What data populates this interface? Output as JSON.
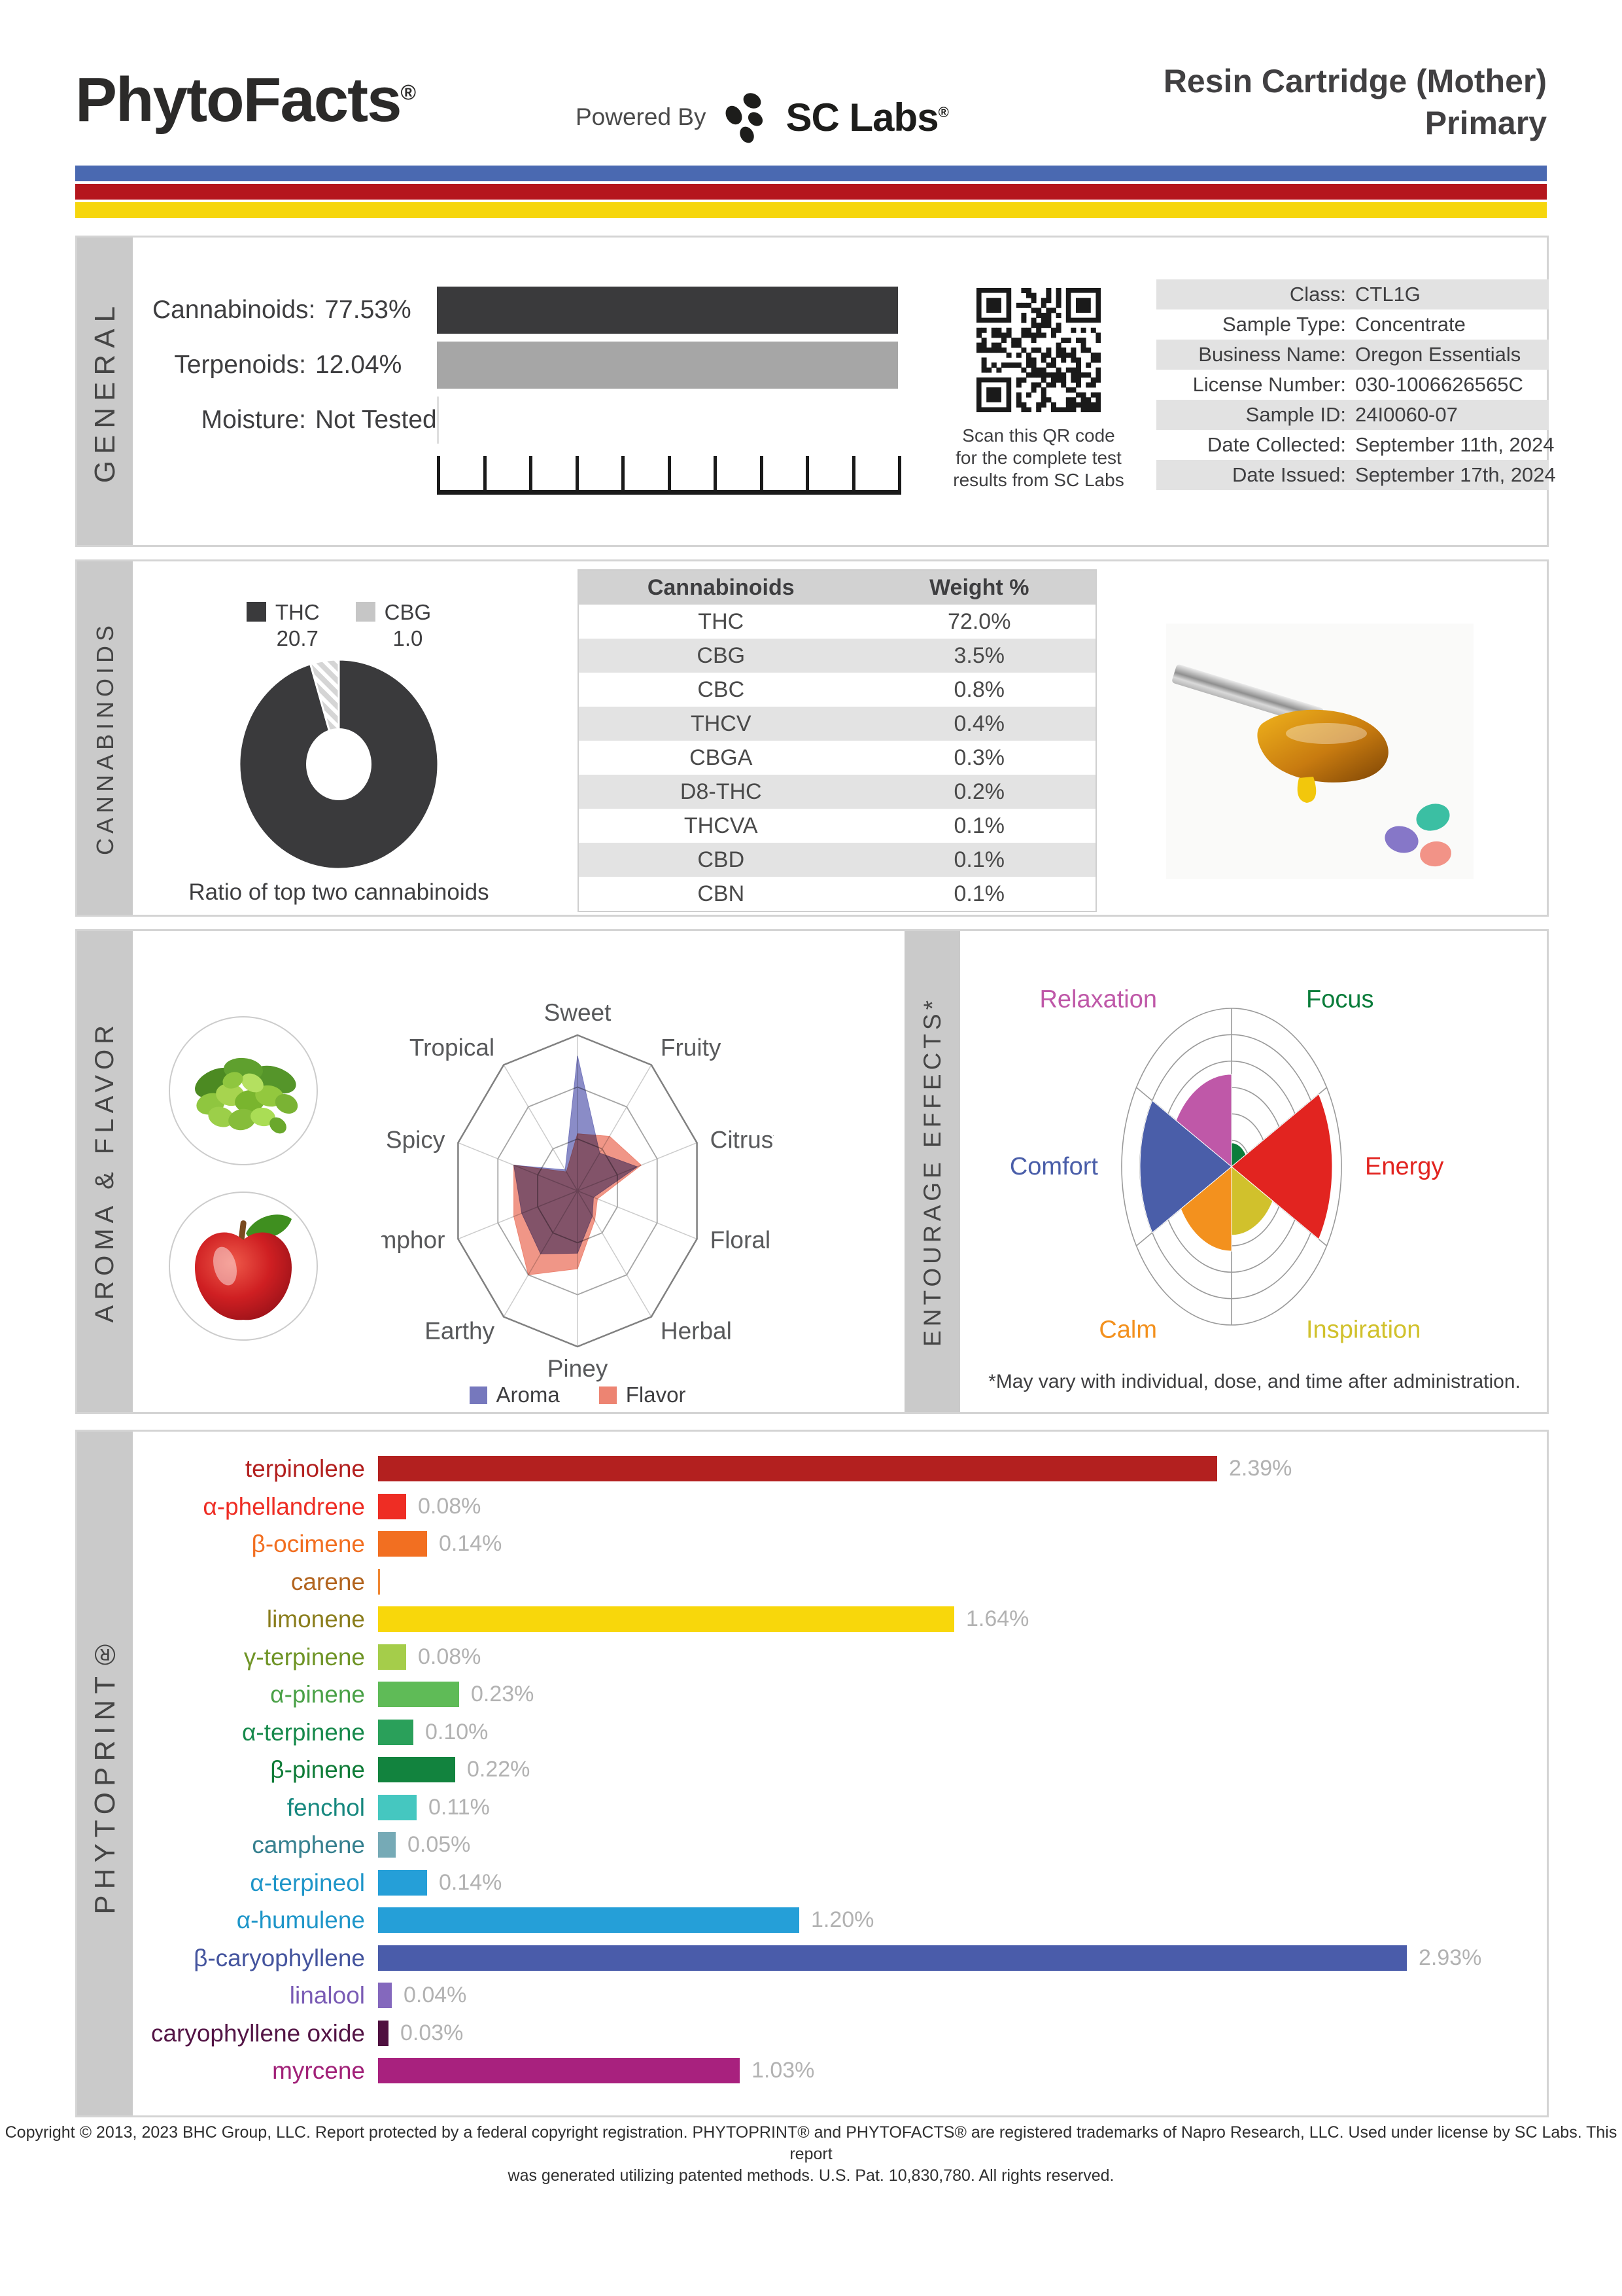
{
  "header": {
    "brand": "PhytoFacts",
    "brand_reg": "®",
    "powered_by": "Powered By",
    "lab_name": "SC Labs",
    "lab_reg": "®",
    "title_line1": "Resin Cartridge (Mother)",
    "title_line2": "Primary",
    "stripe_colors": [
      "#4a69b1",
      "#b5161d",
      "#f6d60d"
    ]
  },
  "general": {
    "sidebar": "GENERAL",
    "metrics": [
      {
        "label": "Cannabinoids:",
        "value": "77.53%",
        "bar_color": "#3a3a3c",
        "bar": true
      },
      {
        "label": "Terpenoids:",
        "value": "12.04%",
        "bar_color": "#a6a6a6",
        "bar": true
      },
      {
        "label": "Moisture:",
        "value": "Not Tested",
        "bar": false
      }
    ],
    "qr_caption_lines": [
      "Scan this QR code",
      "for the complete test",
      "results from SC Labs"
    ],
    "info_rows": [
      {
        "label": "Class:",
        "value": "CTL1G"
      },
      {
        "label": "Sample Type:",
        "value": "Concentrate"
      },
      {
        "label": "Business Name:",
        "value": "Oregon Essentials"
      },
      {
        "label": "License Number:",
        "value": "030-1006626565C"
      },
      {
        "label": "Sample ID:",
        "value": "24I0060-07"
      },
      {
        "label": "Date Collected:",
        "value": "September 11th, 2024"
      },
      {
        "label": "Date Issued:",
        "value": "September 17th, 2024"
      }
    ]
  },
  "cannabinoids": {
    "sidebar": "CANNABINOIDS",
    "caption": "Ratio of top two cannabinoids"
  },
  "aroma": {
    "sidebar": "AROMA & FLAVOR"
  },
  "entourage": {
    "sidebar": "ENTOURAGE EFFECTS*",
    "footnote": "*May vary with individual, dose, and time after administration."
  },
  "phytoprint": {
    "sidebar": "PHYTOPRINT®"
  },
  "footer_lines": [
    "Copyright © 2013, 2023 BHC Group, LLC. Report protected by a federal copyright registration. PHYTOPRINT® and PHYTOFACTS® are registered trademarks of Napro Research, LLC. Used under license by SC Labs. This report",
    "was generated utilizing patented methods. U.S. Pat. 10,830,780. All rights reserved."
  ],
  "chart_data": [
    {
      "id": "cannabinoid_ratio",
      "type": "pie",
      "title": "Ratio of top two cannabinoids",
      "labels": [
        "THC",
        "CBG"
      ],
      "values": [
        20.7,
        1.0
      ],
      "legend_values": [
        "20.7",
        "1.0"
      ],
      "colors": [
        "#3a3a3c",
        "#c6c6c6"
      ],
      "style": "donut, CBG slice hatched, slice at top"
    },
    {
      "id": "cannabinoid_table",
      "type": "table",
      "headers": [
        "Cannabinoids",
        "Weight %"
      ],
      "rows": [
        [
          "THC",
          "72.0%"
        ],
        [
          "CBG",
          "3.5%"
        ],
        [
          "CBC",
          "0.8%"
        ],
        [
          "THCV",
          "0.4%"
        ],
        [
          "CBGA",
          "0.3%"
        ],
        [
          "D8-THC",
          "0.2%"
        ],
        [
          "THCVA",
          "0.1%"
        ],
        [
          "CBD",
          "0.1%"
        ],
        [
          "CBN",
          "0.1%"
        ]
      ]
    },
    {
      "id": "aroma_flavor_radar",
      "type": "radar",
      "categories": [
        "Sweet",
        "Fruity",
        "Citrusy",
        "Floral",
        "Herbal",
        "Piney",
        "Earthy",
        "Camphor",
        "Spicy",
        "Tropical"
      ],
      "max": 3,
      "rings": 3,
      "series": [
        {
          "name": "Aroma",
          "color": "#7678bd",
          "values": [
            2.6,
            0.9,
            1.5,
            0.4,
            0.6,
            1.2,
            1.5,
            1.4,
            1.6,
            0.5
          ]
        },
        {
          "name": "Flavor",
          "color": "#ed8472",
          "values": [
            1.1,
            1.3,
            1.6,
            0.5,
            0.7,
            1.5,
            2.0,
            1.6,
            1.6,
            0.45
          ]
        }
      ]
    },
    {
      "id": "entourage_effects",
      "type": "polar",
      "max": 6,
      "rings": 6,
      "categories": [
        "Focus",
        "Energy",
        "Inspiration",
        "Calm",
        "Comfort",
        "Relaxation"
      ],
      "values": [
        0.9,
        5.5,
        2.6,
        3.2,
        5.0,
        3.5
      ],
      "colors": [
        "#0b7d3b",
        "#e22420",
        "#d1c12c",
        "#f3911e",
        "#4a5ea9",
        "#bf58a8"
      ]
    },
    {
      "id": "phytoprint_terpenes",
      "type": "bar",
      "orientation": "horizontal",
      "xlim": [
        0,
        3.05
      ],
      "categories": [
        "terpinolene",
        "α-phellandrene",
        "β-ocimene",
        "carene",
        "limonene",
        "γ-terpinene",
        "α-pinene",
        "α-terpinene",
        "β-pinene",
        "fenchol",
        "camphene",
        "α-terpineol",
        "α-humulene",
        "β-caryophyllene",
        "linalool",
        "caryophyllene oxide",
        "myrcene"
      ],
      "values": [
        2.39,
        0.08,
        0.14,
        0.005,
        1.64,
        0.08,
        0.23,
        0.1,
        0.22,
        0.11,
        0.05,
        0.14,
        1.2,
        2.93,
        0.04,
        0.03,
        1.03
      ],
      "value_labels": [
        "2.39%",
        "0.08%",
        "0.14%",
        "",
        "1.64%",
        "0.08%",
        "0.23%",
        "0.10%",
        "0.22%",
        "0.11%",
        "0.05%",
        "0.14%",
        "1.20%",
        "2.93%",
        "0.04%",
        "0.03%",
        "1.03%"
      ],
      "colors": [
        "#b3201f",
        "#ee2d24",
        "#f26f21",
        "#f08733",
        "#f8d70b",
        "#a5cd4a",
        "#5fbb57",
        "#2aa05a",
        "#12833e",
        "#45c7c0",
        "#76aab6",
        "#259fd8",
        "#259fd8",
        "#4a5caa",
        "#8468bd",
        "#4f1040",
        "#a8217e"
      ],
      "label_colors": [
        "#b3201f",
        "#ee2d24",
        "#f26f21",
        "#b2641f",
        "#8a7d1c",
        "#6f9426",
        "#4aa147",
        "#16894b",
        "#0f7c38",
        "#17887f",
        "#36808f",
        "#1f96c9",
        "#1f96c9",
        "#44549e",
        "#7a5cb5",
        "#531445",
        "#a12178"
      ]
    }
  ]
}
